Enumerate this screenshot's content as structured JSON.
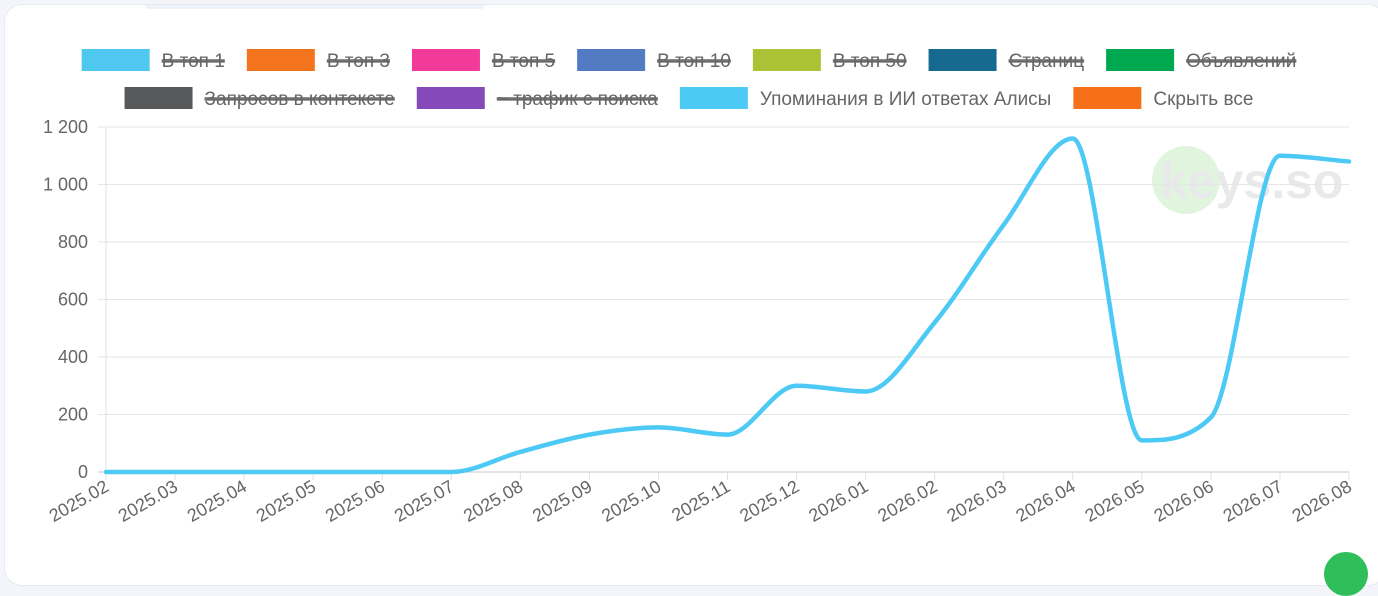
{
  "legend": [
    {
      "label": "В топ 1",
      "color": "#4fc8f0",
      "active": false
    },
    {
      "label": "В топ 3",
      "color": "#f4741e",
      "active": false
    },
    {
      "label": "В топ 5",
      "color": "#f23b98",
      "active": false
    },
    {
      "label": "В топ 10",
      "color": "#537bc4",
      "active": false
    },
    {
      "label": "В топ 50",
      "color": "#acc236",
      "active": false
    },
    {
      "label": "Страниц",
      "color": "#166a8f",
      "active": false
    },
    {
      "label": "Объявлений",
      "color": "#00a950",
      "active": false
    },
    {
      "label": "Запросов в контексте",
      "color": "#58595b",
      "active": false
    },
    {
      "label": "~ трафик с поиска",
      "color": "#8549ba",
      "active": false
    },
    {
      "label": "Упоминания в ИИ ответах Алисы",
      "color": "#4dc9f6",
      "active": true
    },
    {
      "label": "Скрыть все",
      "color": "#f67019",
      "active": true
    }
  ],
  "watermark": "keys.so",
  "chart_data": {
    "type": "line",
    "x": [
      "2025.02",
      "2025.03",
      "2025.04",
      "2025.05",
      "2025.06",
      "2025.07",
      "2025.08",
      "2025.09",
      "2025.10",
      "2025.11",
      "2025.12",
      "2026.01",
      "2026.02",
      "2026.03",
      "2026.04",
      "2026.05",
      "2026.06",
      "2026.07",
      "2026.08"
    ],
    "series": [
      {
        "name": "Упоминания в ИИ ответах Алисы",
        "color": "#4dc9f6",
        "values": [
          0,
          0,
          0,
          0,
          0,
          0,
          70,
          130,
          155,
          130,
          300,
          280,
          520,
          860,
          1160,
          110,
          190,
          1100,
          1080
        ]
      }
    ],
    "y_ticks": [
      "0",
      "200",
      "400",
      "600",
      "800",
      "1 000",
      "1 200"
    ],
    "ylim": [
      0,
      1200
    ],
    "grid": true,
    "legend_position": "top"
  }
}
